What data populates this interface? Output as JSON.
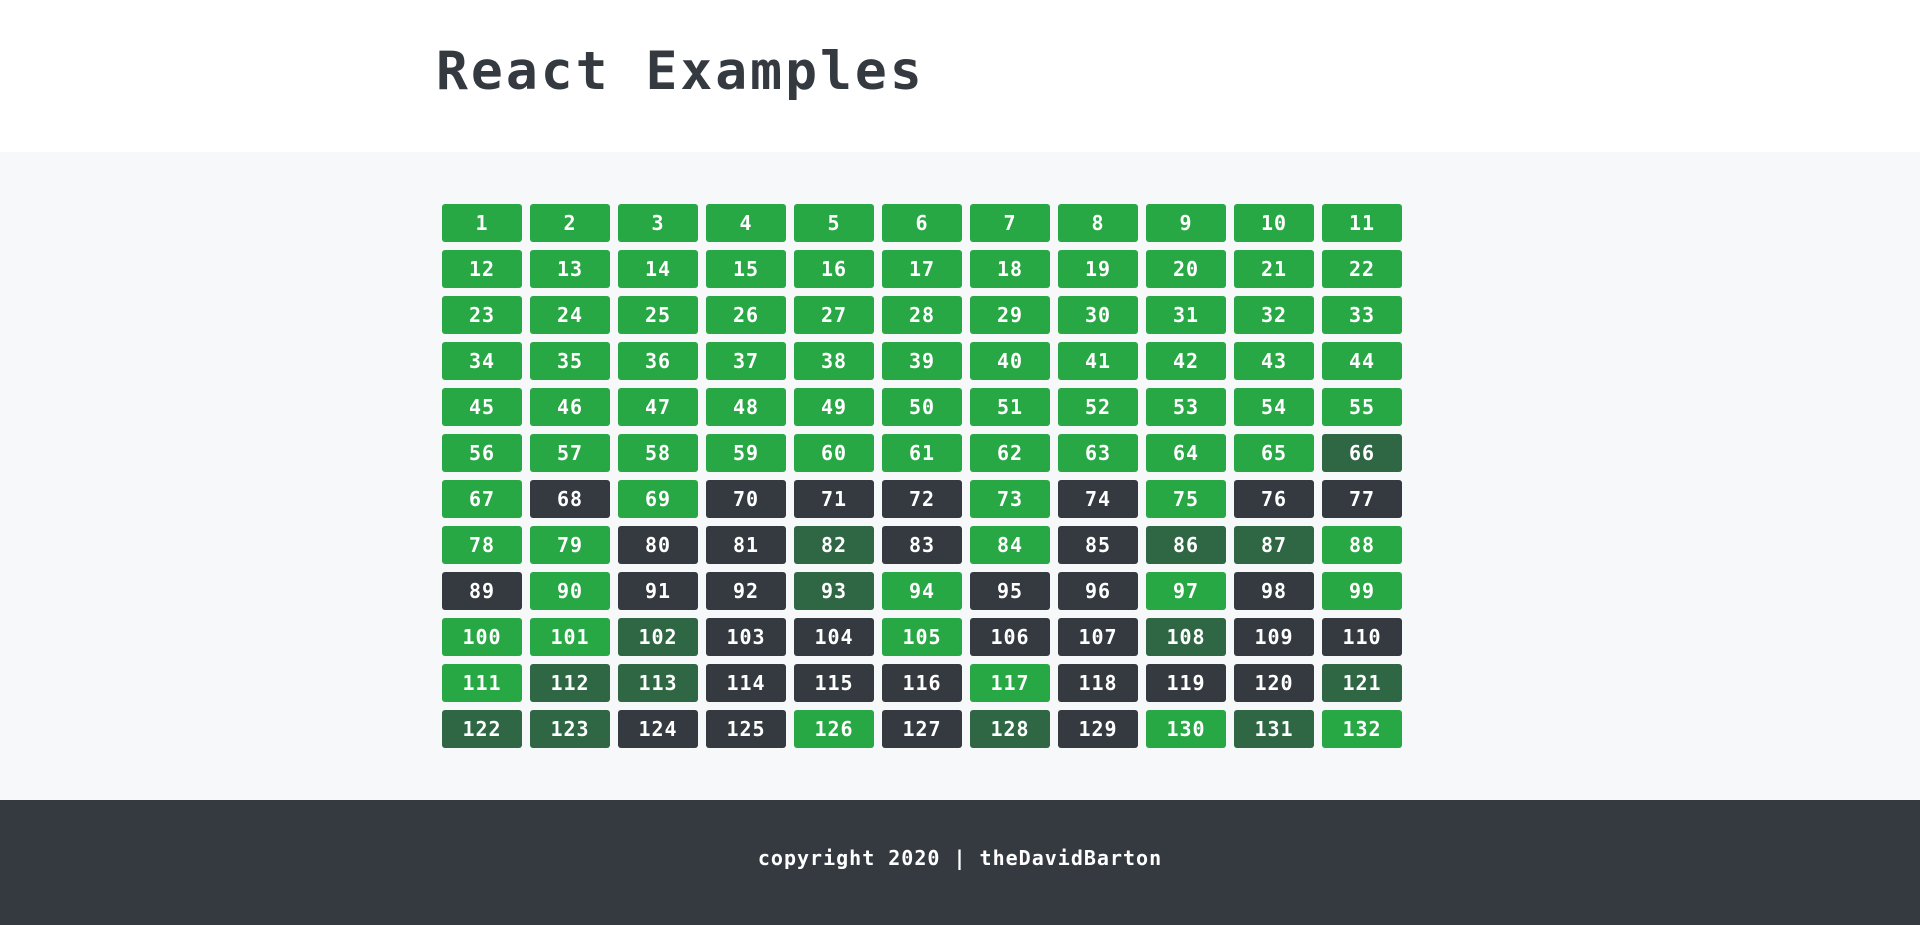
{
  "header": {
    "title": "React Examples"
  },
  "colors": {
    "green": "#28a745",
    "dark": "#343a40",
    "muted_green": "#2f6644",
    "background": "#f6f8fa",
    "footer": "#343a40"
  },
  "grid": {
    "columns": 11,
    "cells": [
      {
        "label": "1",
        "state": "g"
      },
      {
        "label": "2",
        "state": "g"
      },
      {
        "label": "3",
        "state": "g"
      },
      {
        "label": "4",
        "state": "g"
      },
      {
        "label": "5",
        "state": "g"
      },
      {
        "label": "6",
        "state": "g"
      },
      {
        "label": "7",
        "state": "g"
      },
      {
        "label": "8",
        "state": "g"
      },
      {
        "label": "9",
        "state": "g"
      },
      {
        "label": "10",
        "state": "g"
      },
      {
        "label": "11",
        "state": "g"
      },
      {
        "label": "12",
        "state": "g"
      },
      {
        "label": "13",
        "state": "g"
      },
      {
        "label": "14",
        "state": "g"
      },
      {
        "label": "15",
        "state": "g"
      },
      {
        "label": "16",
        "state": "g"
      },
      {
        "label": "17",
        "state": "g"
      },
      {
        "label": "18",
        "state": "g"
      },
      {
        "label": "19",
        "state": "g"
      },
      {
        "label": "20",
        "state": "g"
      },
      {
        "label": "21",
        "state": "g"
      },
      {
        "label": "22",
        "state": "g"
      },
      {
        "label": "23",
        "state": "g"
      },
      {
        "label": "24",
        "state": "g"
      },
      {
        "label": "25",
        "state": "g"
      },
      {
        "label": "26",
        "state": "g"
      },
      {
        "label": "27",
        "state": "g"
      },
      {
        "label": "28",
        "state": "g"
      },
      {
        "label": "29",
        "state": "g"
      },
      {
        "label": "30",
        "state": "g"
      },
      {
        "label": "31",
        "state": "g"
      },
      {
        "label": "32",
        "state": "g"
      },
      {
        "label": "33",
        "state": "g"
      },
      {
        "label": "34",
        "state": "g"
      },
      {
        "label": "35",
        "state": "g"
      },
      {
        "label": "36",
        "state": "g"
      },
      {
        "label": "37",
        "state": "g"
      },
      {
        "label": "38",
        "state": "g"
      },
      {
        "label": "39",
        "state": "g"
      },
      {
        "label": "40",
        "state": "g"
      },
      {
        "label": "41",
        "state": "g"
      },
      {
        "label": "42",
        "state": "g"
      },
      {
        "label": "43",
        "state": "g"
      },
      {
        "label": "44",
        "state": "g"
      },
      {
        "label": "45",
        "state": "g"
      },
      {
        "label": "46",
        "state": "g"
      },
      {
        "label": "47",
        "state": "g"
      },
      {
        "label": "48",
        "state": "g"
      },
      {
        "label": "49",
        "state": "g"
      },
      {
        "label": "50",
        "state": "g"
      },
      {
        "label": "51",
        "state": "g"
      },
      {
        "label": "52",
        "state": "g"
      },
      {
        "label": "53",
        "state": "g"
      },
      {
        "label": "54",
        "state": "g"
      },
      {
        "label": "55",
        "state": "g"
      },
      {
        "label": "56",
        "state": "g"
      },
      {
        "label": "57",
        "state": "g"
      },
      {
        "label": "58",
        "state": "g"
      },
      {
        "label": "59",
        "state": "g"
      },
      {
        "label": "60",
        "state": "g"
      },
      {
        "label": "61",
        "state": "g"
      },
      {
        "label": "62",
        "state": "g"
      },
      {
        "label": "63",
        "state": "g"
      },
      {
        "label": "64",
        "state": "g"
      },
      {
        "label": "65",
        "state": "g"
      },
      {
        "label": "66",
        "state": "m"
      },
      {
        "label": "67",
        "state": "g"
      },
      {
        "label": "68",
        "state": "d"
      },
      {
        "label": "69",
        "state": "g"
      },
      {
        "label": "70",
        "state": "d"
      },
      {
        "label": "71",
        "state": "d"
      },
      {
        "label": "72",
        "state": "d"
      },
      {
        "label": "73",
        "state": "g"
      },
      {
        "label": "74",
        "state": "d"
      },
      {
        "label": "75",
        "state": "g"
      },
      {
        "label": "76",
        "state": "d"
      },
      {
        "label": "77",
        "state": "d"
      },
      {
        "label": "78",
        "state": "g"
      },
      {
        "label": "79",
        "state": "g"
      },
      {
        "label": "80",
        "state": "d"
      },
      {
        "label": "81",
        "state": "d"
      },
      {
        "label": "82",
        "state": "m"
      },
      {
        "label": "83",
        "state": "d"
      },
      {
        "label": "84",
        "state": "g"
      },
      {
        "label": "85",
        "state": "d"
      },
      {
        "label": "86",
        "state": "m"
      },
      {
        "label": "87",
        "state": "m"
      },
      {
        "label": "88",
        "state": "g"
      },
      {
        "label": "89",
        "state": "d"
      },
      {
        "label": "90",
        "state": "g"
      },
      {
        "label": "91",
        "state": "d"
      },
      {
        "label": "92",
        "state": "d"
      },
      {
        "label": "93",
        "state": "m"
      },
      {
        "label": "94",
        "state": "g"
      },
      {
        "label": "95",
        "state": "d"
      },
      {
        "label": "96",
        "state": "d"
      },
      {
        "label": "97",
        "state": "g"
      },
      {
        "label": "98",
        "state": "d"
      },
      {
        "label": "99",
        "state": "g"
      },
      {
        "label": "100",
        "state": "g"
      },
      {
        "label": "101",
        "state": "g"
      },
      {
        "label": "102",
        "state": "m"
      },
      {
        "label": "103",
        "state": "d"
      },
      {
        "label": "104",
        "state": "d"
      },
      {
        "label": "105",
        "state": "g"
      },
      {
        "label": "106",
        "state": "d"
      },
      {
        "label": "107",
        "state": "d"
      },
      {
        "label": "108",
        "state": "m"
      },
      {
        "label": "109",
        "state": "d"
      },
      {
        "label": "110",
        "state": "d"
      },
      {
        "label": "111",
        "state": "g"
      },
      {
        "label": "112",
        "state": "m"
      },
      {
        "label": "113",
        "state": "m"
      },
      {
        "label": "114",
        "state": "d"
      },
      {
        "label": "115",
        "state": "d"
      },
      {
        "label": "116",
        "state": "d"
      },
      {
        "label": "117",
        "state": "g"
      },
      {
        "label": "118",
        "state": "d"
      },
      {
        "label": "119",
        "state": "d"
      },
      {
        "label": "120",
        "state": "d"
      },
      {
        "label": "121",
        "state": "m"
      },
      {
        "label": "122",
        "state": "m"
      },
      {
        "label": "123",
        "state": "m"
      },
      {
        "label": "124",
        "state": "d"
      },
      {
        "label": "125",
        "state": "d"
      },
      {
        "label": "126",
        "state": "g"
      },
      {
        "label": "127",
        "state": "d"
      },
      {
        "label": "128",
        "state": "m"
      },
      {
        "label": "129",
        "state": "d"
      },
      {
        "label": "130",
        "state": "g"
      },
      {
        "label": "131",
        "state": "m"
      },
      {
        "label": "132",
        "state": "g"
      }
    ]
  },
  "footer": {
    "copyright": "copyright 2020 | theDavidBarton"
  }
}
